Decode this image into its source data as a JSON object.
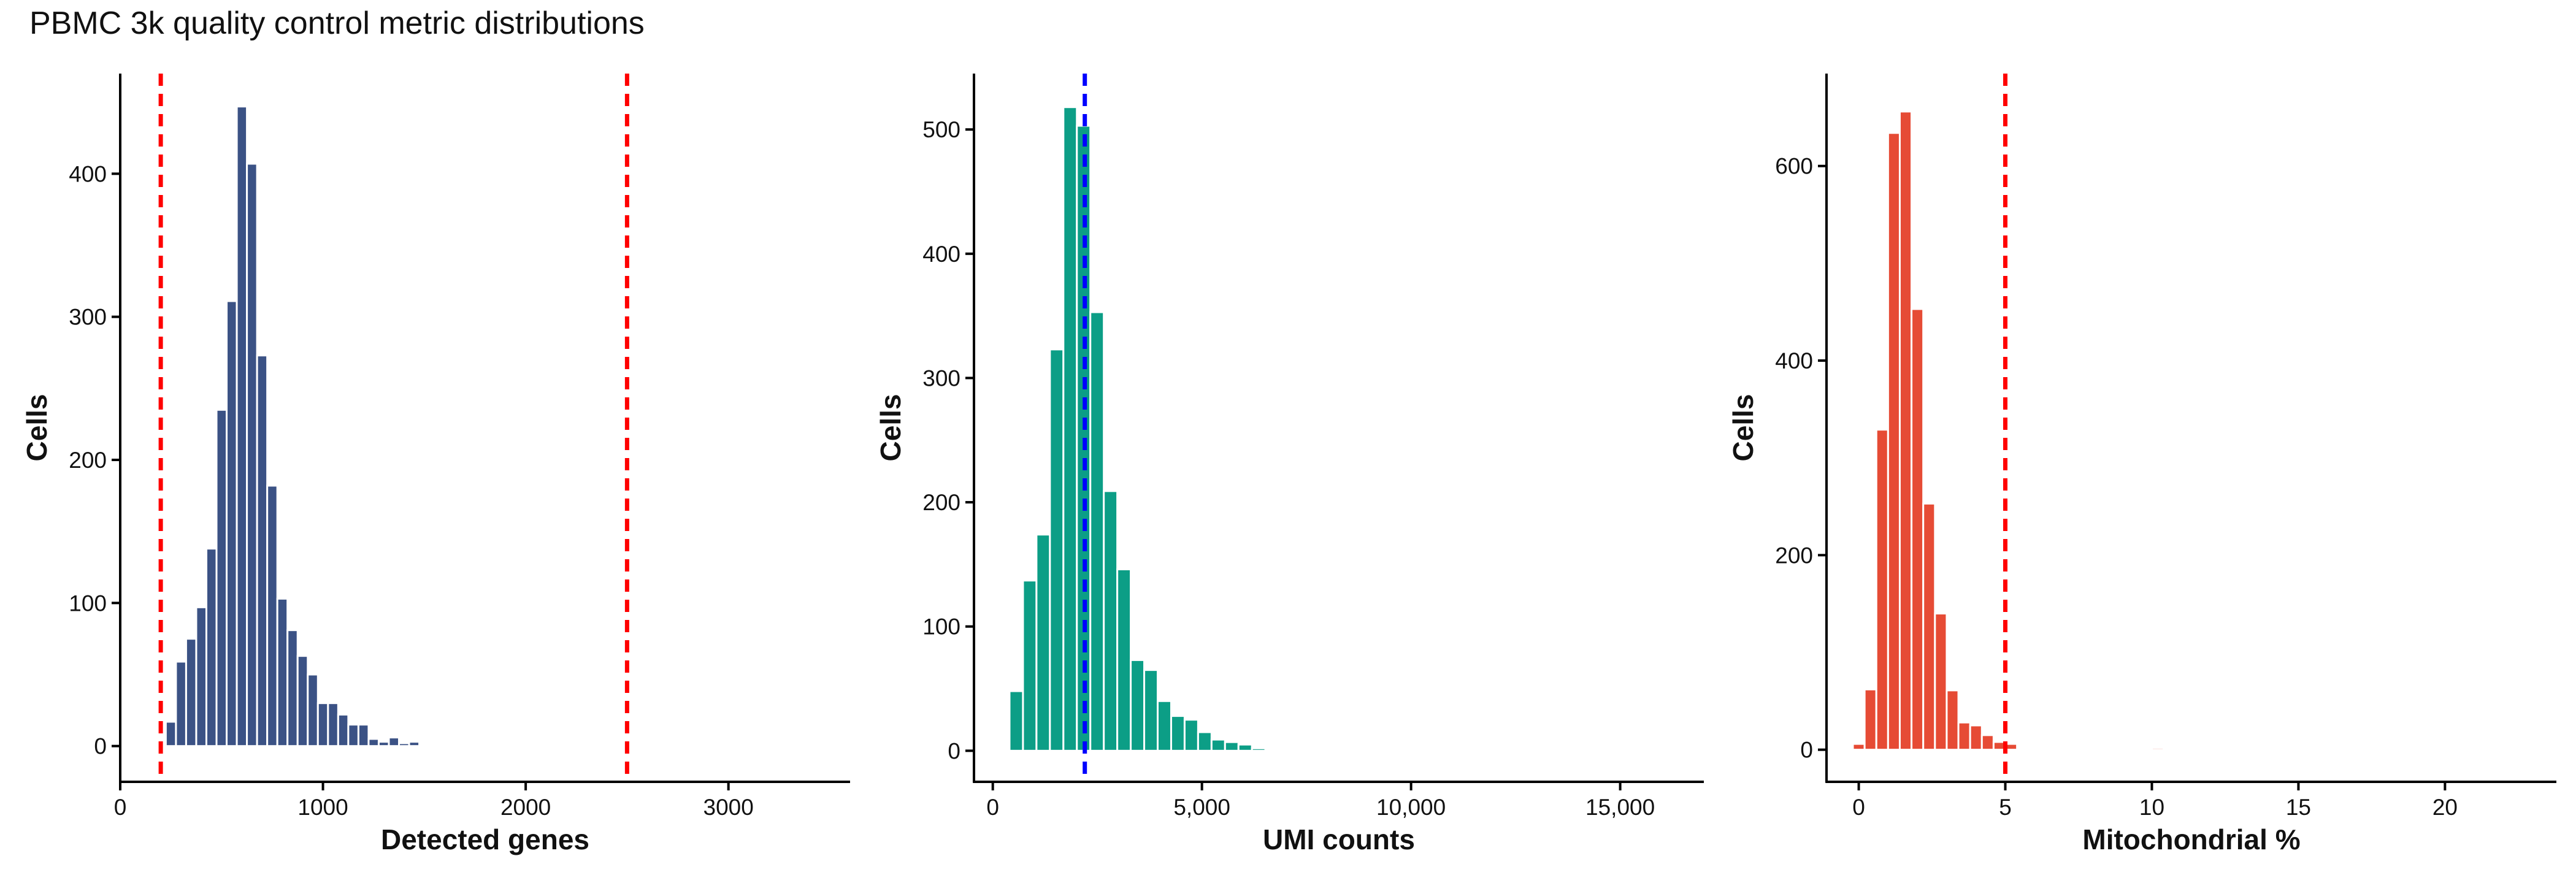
{
  "title": "PBMC 3k quality control metric distributions",
  "chart_data": [
    {
      "type": "bar",
      "xlabel": "Detected genes",
      "ylabel": "Cells",
      "xlim": [
        0,
        3600
      ],
      "ylim": [
        -25,
        470
      ],
      "xticks": [
        0,
        1000,
        2000,
        3000
      ],
      "xtick_labels": [
        "0",
        "1000",
        "2000",
        "3000"
      ],
      "yticks": [
        0,
        100,
        200,
        300,
        400
      ],
      "ytick_labels": [
        "0",
        "100",
        "200",
        "300",
        "400"
      ],
      "bar_color": "#3b5285",
      "bin_width": 50,
      "bin_centers": [
        250,
        300,
        350,
        400,
        450,
        500,
        550,
        600,
        650,
        700,
        750,
        800,
        850,
        900,
        950,
        1000,
        1050,
        1100,
        1150,
        1200,
        1250,
        1300,
        1350,
        1400,
        1450,
        1500,
        1550,
        1600,
        1650,
        1700,
        1750,
        1800,
        1850,
        1900,
        1950,
        2000
      ],
      "values": [
        17,
        59,
        75,
        97,
        138,
        235,
        311,
        447,
        407,
        273,
        182,
        103,
        81,
        63,
        50,
        30,
        30,
        22,
        15,
        15,
        5,
        3,
        6,
        2,
        3,
        0,
        0,
        0,
        0,
        0,
        0,
        0,
        0,
        0,
        0,
        0
      ],
      "vlines": [
        {
          "x": 200,
          "color": "#ff0000"
        },
        {
          "x": 2500,
          "color": "#ff0000"
        }
      ],
      "grid": false
    },
    {
      "type": "bar",
      "xlabel": "UMI counts",
      "ylabel": "Cells",
      "xlim": [
        -450,
        17000
      ],
      "ylim": [
        -25,
        545
      ],
      "xticks": [
        0,
        5000,
        10000,
        15000
      ],
      "xtick_labels": [
        "0",
        "5,000",
        "10,000",
        "15,000"
      ],
      "yticks": [
        0,
        100,
        200,
        300,
        400,
        500
      ],
      "ytick_labels": [
        "0",
        "100",
        "200",
        "300",
        "400",
        "500"
      ],
      "bar_color": "#0c9e86",
      "bin_width": 322,
      "bin_centers": [
        561,
        883,
        1205,
        1527,
        1849,
        2171,
        2493,
        2815,
        3137,
        3459,
        3781,
        4103,
        4425,
        4747,
        5069,
        5391,
        5713,
        6035,
        6357,
        6679,
        7001
      ],
      "values": [
        48,
        137,
        174,
        323,
        518,
        503,
        353,
        209,
        146,
        73,
        65,
        40,
        28,
        25,
        15,
        9,
        7,
        5,
        2,
        1,
        1
      ],
      "vlines": [
        {
          "x": 2200,
          "color": "#0000ff"
        }
      ],
      "grid": false
    },
    {
      "type": "bar",
      "xlabel": "Mitochondrial %",
      "ylabel": "Cells",
      "xlim": [
        -1.1,
        23.8
      ],
      "ylim": [
        -33,
        695
      ],
      "xticks": [
        0,
        5,
        10,
        15,
        20
      ],
      "xtick_labels": [
        "0",
        "5",
        "10",
        "15",
        "20"
      ],
      "yticks": [
        0,
        200,
        400,
        600
      ],
      "ytick_labels": [
        "0",
        "200",
        "400",
        "600"
      ],
      "bar_color": "#e64b35",
      "bin_width": 0.4,
      "bin_centers": [
        0.0,
        0.4,
        0.8,
        1.2,
        1.6,
        2.0,
        2.4,
        2.8,
        3.2,
        3.6,
        4.0,
        4.4,
        4.8,
        5.2,
        5.6,
        6.0,
        6.4,
        6.8,
        10.2
      ],
      "values": [
        6,
        62,
        329,
        634,
        656,
        453,
        253,
        140,
        61,
        28,
        25,
        15,
        8,
        6,
        0,
        0,
        0,
        0,
        2
      ],
      "vlines": [
        {
          "x": 5,
          "color": "#ff0000"
        }
      ],
      "grid": false
    }
  ]
}
